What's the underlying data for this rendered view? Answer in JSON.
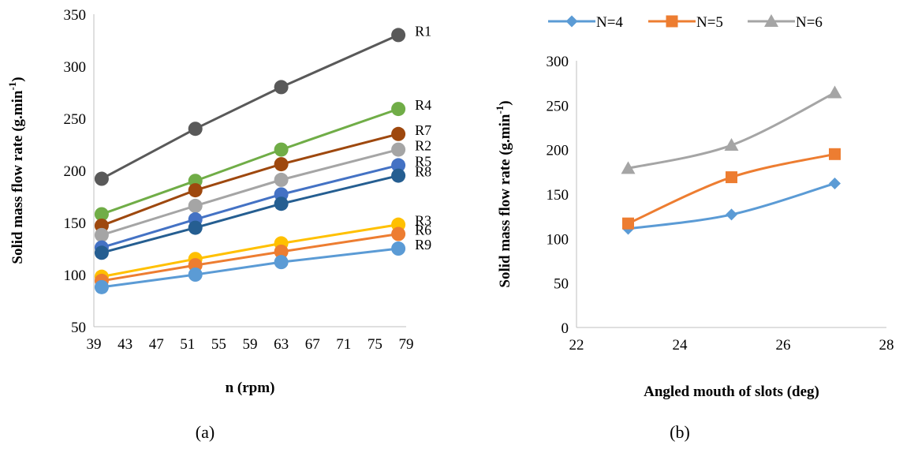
{
  "chart_data": [
    {
      "type": "line",
      "panel_label": "(a)",
      "xlabel": "n (rpm)",
      "ylabel": "Solid mass flow rate (g.min",
      "ylabel_sup": "-1",
      "ylabel_close": ")",
      "xlim": [
        39,
        79
      ],
      "ylim": [
        50,
        350
      ],
      "xticks": [
        39,
        43,
        47,
        51,
        55,
        59,
        63,
        67,
        71,
        75,
        79
      ],
      "yticks": [
        50,
        100,
        150,
        200,
        250,
        300,
        350
      ],
      "grid": false,
      "x": [
        40,
        52,
        63,
        78
      ],
      "series": [
        {
          "name": "R1",
          "color": "#595959",
          "values": [
            192,
            240,
            280,
            330
          ]
        },
        {
          "name": "R4",
          "color": "#70ad47",
          "values": [
            158,
            190,
            220,
            259
          ]
        },
        {
          "name": "R7",
          "color": "#9e480e",
          "values": [
            147,
            181,
            206,
            235
          ]
        },
        {
          "name": "R2",
          "color": "#a5a5a5",
          "values": [
            138,
            166,
            191,
            220
          ]
        },
        {
          "name": "R5",
          "color": "#4472c4",
          "values": [
            126,
            153,
            177,
            205
          ]
        },
        {
          "name": "R8",
          "color": "#255e91",
          "values": [
            121,
            145,
            168,
            195
          ]
        },
        {
          "name": "R3",
          "color": "#ffc000",
          "values": [
            98,
            115,
            130,
            148
          ]
        },
        {
          "name": "R6",
          "color": "#ed7d31",
          "values": [
            94,
            109,
            122,
            139
          ]
        },
        {
          "name": "R9",
          "color": "#5b9bd5",
          "values": [
            88,
            100,
            112,
            125
          ]
        }
      ]
    },
    {
      "type": "line",
      "panel_label": "(b)",
      "xlabel": "Angled mouth of slots (deg)",
      "ylabel": "Solid mass flow rate (g.min",
      "ylabel_sup": "-1",
      "ylabel_close": ")",
      "xlim": [
        22,
        28
      ],
      "ylim": [
        0,
        300
      ],
      "xticks": [
        22,
        24,
        26,
        28
      ],
      "yticks": [
        0,
        50,
        100,
        150,
        200,
        250,
        300
      ],
      "grid": false,
      "legend_position": "top",
      "x": [
        23,
        25,
        27
      ],
      "series": [
        {
          "name": "N=4",
          "color": "#5b9bd5",
          "marker": "diamond",
          "values": [
            111,
            127,
            162
          ]
        },
        {
          "name": "N=5",
          "color": "#ed7d31",
          "marker": "square",
          "values": [
            117,
            169,
            195
          ]
        },
        {
          "name": "N=6",
          "color": "#a5a5a5",
          "marker": "triangle",
          "values": [
            179,
            205,
            264
          ]
        }
      ]
    }
  ]
}
